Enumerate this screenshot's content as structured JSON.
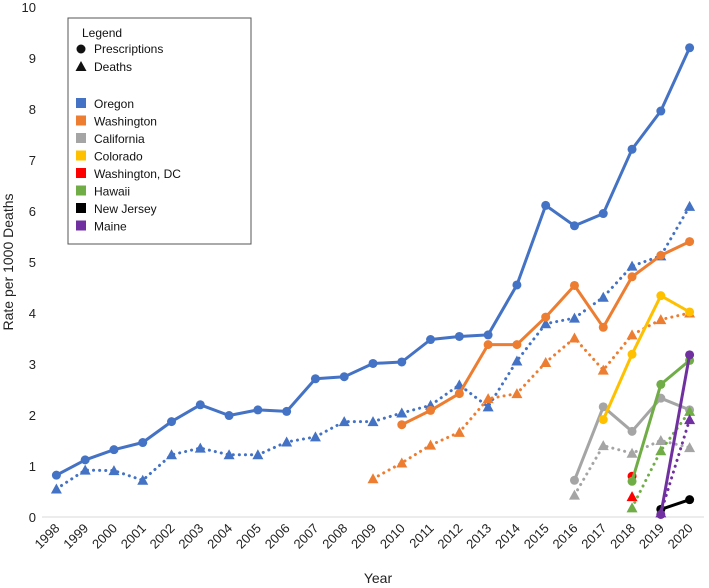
{
  "chart_data": {
    "type": "line",
    "xlabel": "Year",
    "ylabel": "Rate per 1000 Deaths",
    "ylim": [
      0,
      10
    ],
    "yticks": [
      0,
      1,
      2,
      3,
      4,
      5,
      6,
      7,
      8,
      9,
      10
    ],
    "x": [
      "1998",
      "1999",
      "2000",
      "2001",
      "2002",
      "2003",
      "2004",
      "2005",
      "2006",
      "2007",
      "2008",
      "2009",
      "2010",
      "2011",
      "2012",
      "2013",
      "2014",
      "2015",
      "2016",
      "2017",
      "2018",
      "2019",
      "2020"
    ],
    "grid": false,
    "legend": {
      "placement": "top-left",
      "title": "Legend",
      "marker_entries": [
        {
          "label": "Prescriptions",
          "marker": "circle"
        },
        {
          "label": "Deaths",
          "marker": "triangle"
        }
      ],
      "series_entries": [
        {
          "label": "Oregon",
          "color": "#4472C4"
        },
        {
          "label": "Washington",
          "color": "#ED7D31"
        },
        {
          "label": "California",
          "color": "#A5A5A5"
        },
        {
          "label": "Colorado",
          "color": "#FFC000"
        },
        {
          "label": "Washington, DC",
          "color": "#FF0000"
        },
        {
          "label": "Hawaii",
          "color": "#70AD47"
        },
        {
          "label": "New Jersey",
          "color": "#000000"
        },
        {
          "label": "Maine",
          "color": "#7030A0"
        }
      ]
    },
    "series": [
      {
        "name": "Oregon",
        "measure": "Prescriptions",
        "color": "#4472C4",
        "style": "solid",
        "marker": "circle",
        "values": [
          0.82,
          1.12,
          1.32,
          1.46,
          1.87,
          2.2,
          1.99,
          2.1,
          2.07,
          2.71,
          2.75,
          3.01,
          3.04,
          3.48,
          3.54,
          3.57,
          4.55,
          6.11,
          5.71,
          5.95,
          7.21,
          7.96,
          9.2
        ]
      },
      {
        "name": "Oregon",
        "measure": "Deaths",
        "color": "#4472C4",
        "style": "dotted",
        "marker": "triangle",
        "values": [
          0.55,
          0.92,
          0.91,
          0.72,
          1.22,
          1.35,
          1.22,
          1.22,
          1.47,
          1.57,
          1.87,
          1.87,
          2.04,
          2.19,
          2.59,
          2.16,
          3.06,
          3.79,
          3.9,
          4.31,
          4.92,
          5.12,
          6.09
        ]
      },
      {
        "name": "Washington",
        "measure": "Prescriptions",
        "color": "#ED7D31",
        "style": "solid",
        "marker": "circle",
        "values": [
          null,
          null,
          null,
          null,
          null,
          null,
          null,
          null,
          null,
          null,
          null,
          null,
          1.81,
          2.09,
          2.42,
          3.38,
          3.38,
          3.92,
          4.54,
          3.72,
          4.71,
          5.13,
          5.4
        ]
      },
      {
        "name": "Washington",
        "measure": "Deaths",
        "color": "#ED7D31",
        "style": "dotted",
        "marker": "triangle",
        "values": [
          null,
          null,
          null,
          null,
          null,
          null,
          null,
          null,
          null,
          null,
          null,
          0.75,
          1.06,
          1.41,
          1.66,
          2.32,
          2.42,
          3.03,
          3.51,
          2.88,
          3.57,
          3.87,
          4.0
        ]
      },
      {
        "name": "California",
        "measure": "Prescriptions",
        "color": "#A5A5A5",
        "style": "solid",
        "marker": "circle",
        "values": [
          null,
          null,
          null,
          null,
          null,
          null,
          null,
          null,
          null,
          null,
          null,
          null,
          null,
          null,
          null,
          null,
          null,
          null,
          0.72,
          2.16,
          1.68,
          2.33,
          2.1
        ]
      },
      {
        "name": "California",
        "measure": "Deaths",
        "color": "#A5A5A5",
        "style": "dotted",
        "marker": "triangle",
        "values": [
          null,
          null,
          null,
          null,
          null,
          null,
          null,
          null,
          null,
          null,
          null,
          null,
          null,
          null,
          null,
          null,
          null,
          null,
          0.43,
          1.4,
          1.25,
          1.5,
          1.36
        ]
      },
      {
        "name": "Colorado",
        "measure": "Prescriptions",
        "color": "#FFC000",
        "style": "solid",
        "marker": "circle",
        "values": [
          null,
          null,
          null,
          null,
          null,
          null,
          null,
          null,
          null,
          null,
          null,
          null,
          null,
          null,
          null,
          null,
          null,
          null,
          null,
          1.91,
          3.19,
          4.34,
          4.02
        ]
      },
      {
        "name": "Colorado",
        "measure": "Deaths",
        "color": "#FFC000",
        "style": "dotted",
        "marker": "triangle",
        "values": [
          null,
          null,
          null,
          null,
          null,
          null,
          null,
          null,
          null,
          null,
          null,
          null,
          null,
          null,
          null,
          null,
          null,
          null,
          null,
          null,
          null,
          null,
          null
        ]
      },
      {
        "name": "Washington, DC",
        "measure": "Prescriptions",
        "color": "#FF0000",
        "style": "solid",
        "marker": "circle",
        "values": [
          null,
          null,
          null,
          null,
          null,
          null,
          null,
          null,
          null,
          null,
          null,
          null,
          null,
          null,
          null,
          null,
          null,
          null,
          null,
          null,
          0.8,
          null,
          null
        ]
      },
      {
        "name": "Washington, DC",
        "measure": "Deaths",
        "color": "#FF0000",
        "style": "dotted",
        "marker": "triangle",
        "values": [
          null,
          null,
          null,
          null,
          null,
          null,
          null,
          null,
          null,
          null,
          null,
          null,
          null,
          null,
          null,
          null,
          null,
          null,
          null,
          null,
          0.4,
          null,
          null
        ]
      },
      {
        "name": "Hawaii",
        "measure": "Prescriptions",
        "color": "#70AD47",
        "style": "solid",
        "marker": "circle",
        "values": [
          null,
          null,
          null,
          null,
          null,
          null,
          null,
          null,
          null,
          null,
          null,
          null,
          null,
          null,
          null,
          null,
          null,
          null,
          null,
          null,
          0.7,
          2.6,
          3.07
        ]
      },
      {
        "name": "Hawaii",
        "measure": "Deaths",
        "color": "#70AD47",
        "style": "dotted",
        "marker": "triangle",
        "values": [
          null,
          null,
          null,
          null,
          null,
          null,
          null,
          null,
          null,
          null,
          null,
          null,
          null,
          null,
          null,
          null,
          null,
          null,
          null,
          null,
          0.18,
          1.3,
          2.07
        ]
      },
      {
        "name": "New Jersey",
        "measure": "Prescriptions",
        "color": "#000000",
        "style": "solid",
        "marker": "circle",
        "values": [
          null,
          null,
          null,
          null,
          null,
          null,
          null,
          null,
          null,
          null,
          null,
          null,
          null,
          null,
          null,
          null,
          null,
          null,
          null,
          null,
          null,
          0.15,
          0.34
        ]
      },
      {
        "name": "Maine",
        "measure": "Prescriptions",
        "color": "#7030A0",
        "style": "solid",
        "marker": "circle",
        "values": [
          null,
          null,
          null,
          null,
          null,
          null,
          null,
          null,
          null,
          null,
          null,
          null,
          null,
          null,
          null,
          null,
          null,
          null,
          null,
          null,
          null,
          0.05,
          3.18
        ]
      },
      {
        "name": "Maine",
        "measure": "Deaths",
        "color": "#7030A0",
        "style": "dotted",
        "marker": "triangle",
        "values": [
          null,
          null,
          null,
          null,
          null,
          null,
          null,
          null,
          null,
          null,
          null,
          null,
          null,
          null,
          null,
          null,
          null,
          null,
          null,
          null,
          null,
          0.08,
          1.91
        ]
      }
    ]
  }
}
